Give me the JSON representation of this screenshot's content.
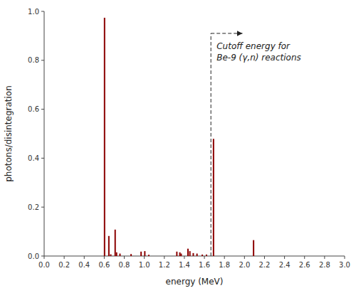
{
  "chart_data": {
    "type": "bar",
    "xlabel": "energy (MeV)",
    "ylabel": "photons/disintegration",
    "x": [
      0.603,
      0.646,
      0.665,
      0.709,
      0.723,
      0.757,
      0.868,
      0.968,
      1.005,
      1.045,
      1.325,
      1.355,
      1.368,
      1.436,
      1.455,
      1.489,
      1.526,
      1.579,
      1.621,
      1.691,
      2.091
    ],
    "values": [
      0.974,
      0.082,
      0.007,
      0.108,
      0.015,
      0.01,
      0.008,
      0.018,
      0.02,
      0.005,
      0.018,
      0.015,
      0.01,
      0.03,
      0.02,
      0.012,
      0.01,
      0.006,
      0.006,
      0.479,
      0.065
    ],
    "color": "#8B0000",
    "xlim": [
      0.0,
      3.0
    ],
    "ylim": [
      0.0,
      1.0
    ],
    "xticks": [
      {
        "value": 0.0,
        "label": "0.0"
      },
      0.2,
      0.4,
      0.6,
      0.8,
      {
        "value": 1.0,
        "label": "1.0"
      },
      1.2,
      1.4,
      1.6,
      1.8,
      {
        "value": 2.0,
        "label": "2.0"
      },
      2.2,
      2.4,
      2.6,
      2.8,
      {
        "value": 3.0,
        "label": "3.0"
      }
    ],
    "yticks": [
      {
        "value": 0.0,
        "label": "0.0"
      },
      0.2,
      0.4,
      0.6,
      0.8,
      {
        "value": 1.0,
        "label": "1.0"
      }
    ],
    "cutoff": {
      "x": 1.665,
      "y": 0.91,
      "arrow_to": 1.98
    },
    "annotation": [
      "Cutoff energy for",
      "Be-9 (γ,n) reactions"
    ]
  }
}
